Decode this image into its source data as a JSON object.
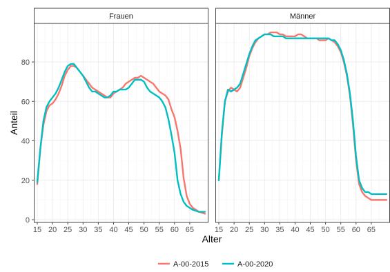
{
  "chart_data": {
    "type": "line",
    "panels": [
      "Frauen",
      "Männer"
    ],
    "xlabel": "Alter",
    "ylabel": "Anteil",
    "xlim": [
      15,
      70
    ],
    "ylim": [
      0,
      100
    ],
    "x_ticks": [
      15,
      20,
      25,
      30,
      35,
      40,
      45,
      50,
      55,
      60,
      65
    ],
    "y_ticks": [
      0,
      20,
      40,
      60,
      80
    ],
    "grid": true,
    "legend": {
      "position": "bottom"
    },
    "series": [
      {
        "name": "A-00-2015",
        "color": "#F8766D",
        "panels": {
          "Frauen": {
            "x": [
              15,
              16,
              17,
              18,
              19,
              20,
              21,
              22,
              23,
              24,
              25,
              26,
              27,
              28,
              29,
              30,
              31,
              32,
              33,
              34,
              35,
              36,
              37,
              38,
              39,
              40,
              41,
              42,
              43,
              44,
              45,
              46,
              47,
              48,
              49,
              50,
              51,
              52,
              53,
              54,
              55,
              56,
              57,
              58,
              59,
              60,
              61,
              62,
              63,
              64,
              65,
              66,
              67,
              68,
              69,
              70
            ],
            "y": [
              18,
              36,
              48,
              55,
              58,
              59,
              61,
              64,
              68,
              73,
              76,
              78,
              78,
              77,
              75,
              73,
              71,
              69,
              67,
              66,
              65,
              64,
              63,
              62,
              62,
              64,
              65,
              66,
              67,
              69,
              70,
              71,
              72,
              72,
              73,
              72,
              71,
              70,
              69,
              67,
              65,
              64,
              63,
              61,
              56,
              52,
              45,
              36,
              21,
              12,
              8,
              6,
              5,
              4,
              3.5,
              3
            ]
          },
          "Männer": {
            "x": [
              15,
              16,
              17,
              18,
              19,
              20,
              21,
              22,
              23,
              24,
              25,
              26,
              27,
              28,
              29,
              30,
              31,
              32,
              33,
              34,
              35,
              36,
              37,
              38,
              39,
              40,
              41,
              42,
              43,
              44,
              45,
              46,
              47,
              48,
              49,
              50,
              51,
              52,
              53,
              54,
              55,
              56,
              57,
              58,
              59,
              60,
              61,
              62,
              63,
              64,
              65,
              66,
              67,
              68,
              69,
              70
            ],
            "y": [
              20,
              43,
              60,
              65,
              67,
              66,
              65,
              67,
              72,
              77,
              83,
              87,
              90,
              92,
              93,
              94,
              94,
              95,
              95,
              95,
              94,
              94,
              93,
              93,
              93,
              93,
              94,
              94,
              93,
              92,
              92,
              92,
              92,
              91,
              91,
              91,
              92,
              91,
              90,
              88,
              85,
              80,
              73,
              63,
              48,
              30,
              18,
              14,
              12,
              11,
              10,
              10,
              10,
              10,
              10,
              10
            ]
          }
        }
      },
      {
        "name": "A-00-2020",
        "color": "#00BFC4",
        "panels": {
          "Frauen": {
            "x": [
              15,
              16,
              17,
              18,
              19,
              20,
              21,
              22,
              23,
              24,
              25,
              26,
              27,
              28,
              29,
              30,
              31,
              32,
              33,
              34,
              35,
              36,
              37,
              38,
              39,
              40,
              41,
              42,
              43,
              44,
              45,
              46,
              47,
              48,
              49,
              50,
              51,
              52,
              53,
              54,
              55,
              56,
              57,
              58,
              59,
              60,
              61,
              62,
              63,
              64,
              65,
              66,
              67,
              68,
              69,
              70
            ],
            "y": [
              19,
              36,
              50,
              57,
              60,
              62,
              64,
              67,
              71,
              75,
              78,
              79,
              79,
              77,
              75,
              73,
              70,
              67,
              65,
              65,
              64,
              63,
              62,
              62,
              63,
              65,
              65,
              66,
              66,
              66,
              67,
              69,
              71,
              71,
              71,
              70,
              67,
              65,
              64,
              63,
              62,
              60,
              57,
              51,
              43,
              34,
              20,
              13,
              9,
              7,
              6,
              5,
              4.5,
              4,
              4,
              4
            ]
          },
          "Männer": {
            "x": [
              15,
              16,
              17,
              18,
              19,
              20,
              21,
              22,
              23,
              24,
              25,
              26,
              27,
              28,
              29,
              30,
              31,
              32,
              33,
              34,
              35,
              36,
              37,
              38,
              39,
              40,
              41,
              42,
              43,
              44,
              45,
              46,
              47,
              48,
              49,
              50,
              51,
              52,
              53,
              54,
              55,
              56,
              57,
              58,
              59,
              60,
              61,
              62,
              63,
              64,
              65,
              66,
              67,
              68,
              69,
              70
            ],
            "y": [
              20,
              44,
              60,
              66,
              65,
              66,
              67,
              69,
              74,
              79,
              84,
              88,
              91,
              92,
              93,
              94,
              94,
              94,
              93,
              93,
              93,
              93,
              92,
              92,
              92,
              92,
              92,
              92,
              92,
              92,
              92,
              92,
              92,
              92,
              92,
              92,
              92,
              91,
              91,
              89,
              86,
              81,
              74,
              64,
              50,
              32,
              20,
              16,
              14,
              14,
              13,
              13,
              13,
              13,
              13,
              13
            ]
          }
        }
      }
    ]
  }
}
